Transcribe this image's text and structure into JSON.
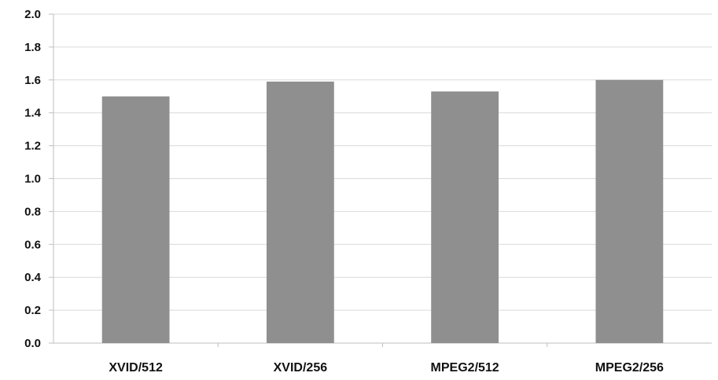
{
  "chart_data": {
    "type": "bar",
    "categories": [
      "XVID/512",
      "XVID/256",
      "MPEG2/512",
      "MPEG2/256"
    ],
    "values": [
      1.5,
      1.59,
      1.53,
      1.6
    ],
    "ylim": [
      0,
      2.0
    ],
    "yticks": [
      "0.0",
      "0.2",
      "0.4",
      "0.6",
      "0.8",
      "1.0",
      "1.2",
      "1.4",
      "1.6",
      "1.8",
      "2.0"
    ],
    "grid": true,
    "legend": "none",
    "bar_color": "#8f8f8f",
    "grid_color": "#d9d9d9",
    "axis_color": "#bfbfbf"
  }
}
